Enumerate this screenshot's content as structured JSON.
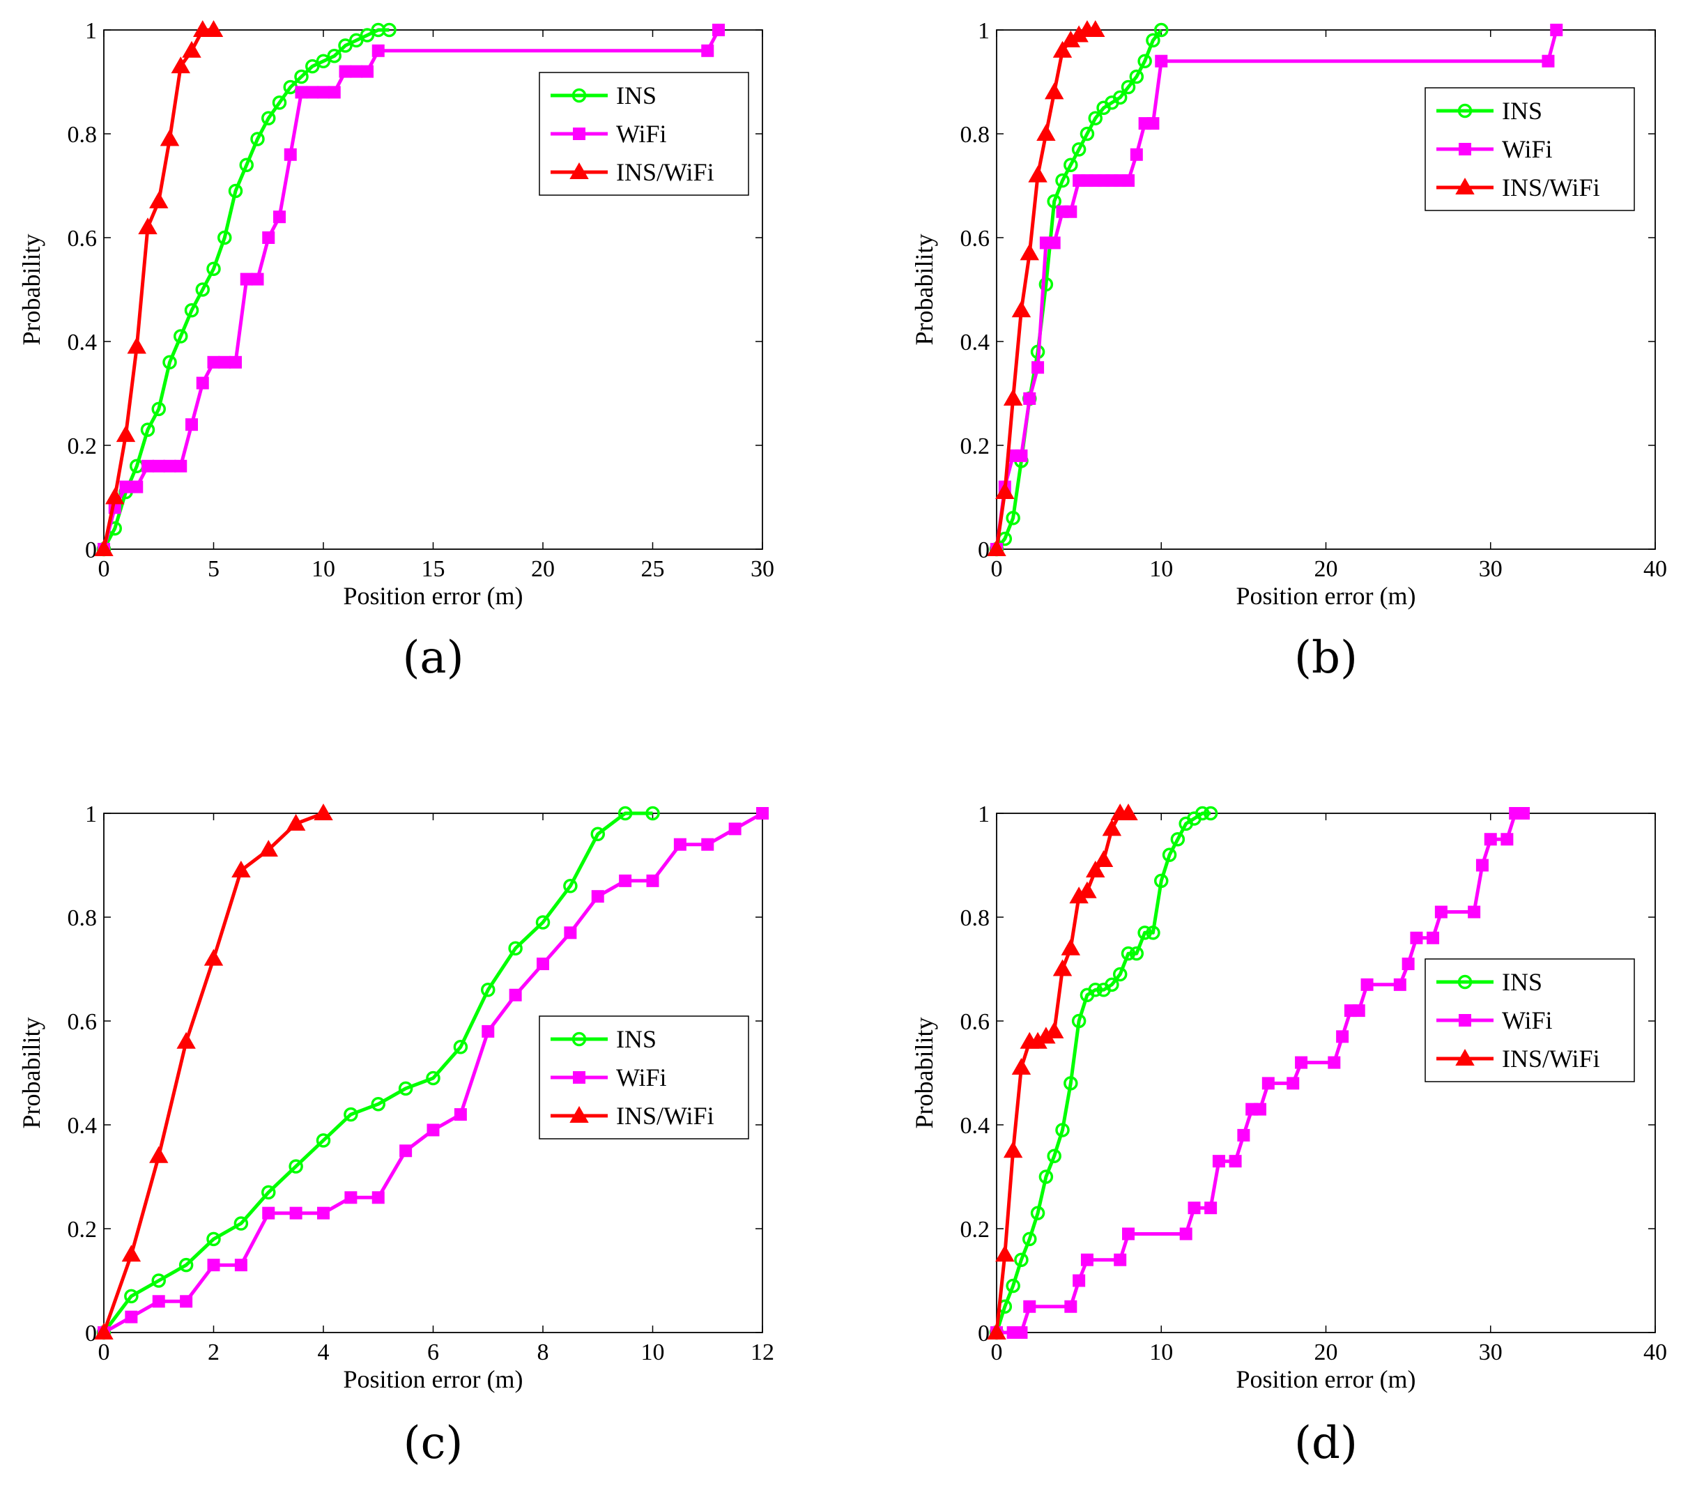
{
  "figure": {
    "panel_labels": [
      "(a)",
      "(b)",
      "(c)",
      "(d)"
    ]
  },
  "colors": {
    "INS": "#00ff00",
    "WiFi": "#ff00ff",
    "INS/WiFi": "#ff0000"
  },
  "chart_data": [
    {
      "type": "line",
      "panel": "(a)",
      "xlabel": "Position error (m)",
      "ylabel": "Probability",
      "xlim": [
        0,
        30
      ],
      "ylim": [
        0,
        1
      ],
      "xticks": [
        0,
        5,
        10,
        15,
        20,
        25,
        30
      ],
      "xtick_labels": [
        "0",
        "5",
        "10",
        "15",
        "20",
        "25",
        "30"
      ],
      "yticks": [
        0,
        0.2,
        0.4,
        0.6,
        0.8,
        1
      ],
      "ytick_labels": [
        "0",
        "0.2",
        "0.4",
        "0.6",
        "0.8",
        "1"
      ],
      "legend": {
        "position": "top-right",
        "entries": [
          "INS",
          "WiFi",
          "INS/WiFi"
        ]
      },
      "series": [
        {
          "name": "INS",
          "marker": "circle",
          "x": [
            0,
            0.5,
            1,
            1.5,
            2,
            2.5,
            3,
            3.5,
            4,
            4.5,
            5,
            5.5,
            6,
            6.5,
            7,
            7.5,
            8,
            8.5,
            9,
            9.5,
            10,
            10.5,
            11,
            11.5,
            12,
            12.5,
            13
          ],
          "y": [
            0,
            0.04,
            0.11,
            0.16,
            0.23,
            0.27,
            0.36,
            0.41,
            0.46,
            0.5,
            0.54,
            0.6,
            0.69,
            0.74,
            0.79,
            0.83,
            0.86,
            0.89,
            0.91,
            0.93,
            0.94,
            0.95,
            0.97,
            0.98,
            0.99,
            1,
            1
          ]
        },
        {
          "name": "WiFi",
          "marker": "square",
          "x": [
            0,
            0.5,
            1,
            1.5,
            2,
            2.5,
            3,
            3.5,
            4,
            4.5,
            5,
            5.5,
            6,
            6.5,
            7,
            7.5,
            8,
            8.5,
            9,
            9.5,
            10,
            10.5,
            11,
            11.5,
            12,
            12.5,
            27.5,
            28
          ],
          "y": [
            0,
            0.08,
            0.12,
            0.12,
            0.16,
            0.16,
            0.16,
            0.16,
            0.24,
            0.32,
            0.36,
            0.36,
            0.36,
            0.52,
            0.52,
            0.6,
            0.64,
            0.76,
            0.88,
            0.88,
            0.88,
            0.88,
            0.92,
            0.92,
            0.92,
            0.96,
            0.96,
            1
          ]
        },
        {
          "name": "INS/WiFi",
          "marker": "triangle",
          "x": [
            0,
            0.5,
            1,
            1.5,
            2,
            2.5,
            3,
            3.5,
            4,
            4.5,
            5
          ],
          "y": [
            0,
            0.1,
            0.22,
            0.39,
            0.62,
            0.67,
            0.79,
            0.93,
            0.96,
            1,
            1
          ]
        }
      ]
    },
    {
      "type": "line",
      "panel": "(b)",
      "xlabel": "Position error (m)",
      "ylabel": "Probability",
      "xlim": [
        0,
        40
      ],
      "ylim": [
        0,
        1
      ],
      "xticks": [
        0,
        10,
        20,
        30,
        40
      ],
      "xtick_labels": [
        "0",
        "10",
        "20",
        "30",
        "40"
      ],
      "yticks": [
        0,
        0.2,
        0.4,
        0.6,
        0.8,
        1
      ],
      "ytick_labels": [
        "0",
        "0.2",
        "0.4",
        "0.6",
        "0.8",
        "1"
      ],
      "legend": {
        "position": "top-right",
        "entries": [
          "INS",
          "WiFi",
          "INS/WiFi"
        ]
      },
      "series": [
        {
          "name": "INS",
          "marker": "circle",
          "x": [
            0,
            0.5,
            1,
            1.5,
            2,
            2.5,
            3,
            3.5,
            4,
            4.5,
            5,
            5.5,
            6,
            6.5,
            7,
            7.5,
            8,
            8.5,
            9,
            9.5,
            10
          ],
          "y": [
            0,
            0.02,
            0.06,
            0.17,
            0.29,
            0.38,
            0.51,
            0.67,
            0.71,
            0.74,
            0.77,
            0.8,
            0.83,
            0.85,
            0.86,
            0.87,
            0.89,
            0.91,
            0.94,
            0.98,
            1
          ]
        },
        {
          "name": "WiFi",
          "marker": "square",
          "x": [
            0,
            0.5,
            1,
            1.5,
            2,
            2.5,
            3,
            3.5,
            4,
            4.5,
            5,
            5.5,
            6,
            6.5,
            7,
            7.5,
            8,
            8.5,
            9,
            9.5,
            10,
            33.5,
            34
          ],
          "y": [
            0,
            0.12,
            0.18,
            0.18,
            0.29,
            0.35,
            0.59,
            0.59,
            0.65,
            0.65,
            0.71,
            0.71,
            0.71,
            0.71,
            0.71,
            0.71,
            0.71,
            0.76,
            0.82,
            0.82,
            0.94,
            0.94,
            1
          ]
        },
        {
          "name": "INS/WiFi",
          "marker": "triangle",
          "x": [
            0,
            0.5,
            1,
            1.5,
            2,
            2.5,
            3,
            3.5,
            4,
            4.5,
            5,
            5.5,
            6
          ],
          "y": [
            0,
            0.11,
            0.29,
            0.46,
            0.57,
            0.72,
            0.8,
            0.88,
            0.96,
            0.98,
            0.99,
            1,
            1
          ]
        }
      ]
    },
    {
      "type": "line",
      "panel": "(c)",
      "xlabel": "Position error (m)",
      "ylabel": "Probability",
      "xlim": [
        0,
        12
      ],
      "ylim": [
        0,
        1
      ],
      "xticks": [
        0,
        2,
        4,
        6,
        8,
        10,
        12
      ],
      "xtick_labels": [
        "0",
        "2",
        "4",
        "6",
        "8",
        "10",
        "12"
      ],
      "yticks": [
        0,
        0.2,
        0.4,
        0.6,
        0.8,
        1
      ],
      "ytick_labels": [
        "0",
        "0.2",
        "0.4",
        "0.6",
        "0.8",
        "1"
      ],
      "legend": {
        "position": "middle-right",
        "entries": [
          "INS",
          "WiFi",
          "INS/WiFi"
        ]
      },
      "series": [
        {
          "name": "INS",
          "marker": "circle",
          "x": [
            0,
            0.5,
            1,
            1.5,
            2,
            2.5,
            3,
            3.5,
            4,
            4.5,
            5,
            5.5,
            6,
            6.5,
            7,
            7.5,
            8,
            8.5,
            9,
            9.5,
            10
          ],
          "y": [
            0,
            0.07,
            0.1,
            0.13,
            0.18,
            0.21,
            0.27,
            0.32,
            0.37,
            0.42,
            0.44,
            0.47,
            0.49,
            0.55,
            0.66,
            0.74,
            0.79,
            0.86,
            0.96,
            1,
            1
          ]
        },
        {
          "name": "WiFi",
          "marker": "square",
          "x": [
            0,
            0.5,
            1,
            1.5,
            2,
            2.5,
            3,
            3.5,
            4,
            4.5,
            5,
            5.5,
            6,
            6.5,
            7,
            7.5,
            8,
            8.5,
            9,
            9.5,
            10,
            10.5,
            11,
            11.5,
            12
          ],
          "y": [
            0,
            0.03,
            0.06,
            0.06,
            0.13,
            0.13,
            0.23,
            0.23,
            0.23,
            0.26,
            0.26,
            0.35,
            0.39,
            0.42,
            0.58,
            0.65,
            0.71,
            0.77,
            0.84,
            0.87,
            0.87,
            0.94,
            0.94,
            0.97,
            1
          ]
        },
        {
          "name": "INS/WiFi",
          "marker": "triangle",
          "x": [
            0,
            0.5,
            1,
            1.5,
            2,
            2.5,
            3,
            3.5,
            4
          ],
          "y": [
            0,
            0.15,
            0.34,
            0.56,
            0.72,
            0.89,
            0.93,
            0.98,
            1
          ]
        }
      ]
    },
    {
      "type": "line",
      "panel": "(d)",
      "xlabel": "Position error (m)",
      "ylabel": "Probability",
      "xlim": [
        0,
        40
      ],
      "ylim": [
        0,
        1
      ],
      "xticks": [
        0,
        10,
        20,
        30,
        40
      ],
      "xtick_labels": [
        "0",
        "10",
        "20",
        "30",
        "40"
      ],
      "yticks": [
        0,
        0.2,
        0.4,
        0.6,
        0.8,
        1
      ],
      "ytick_labels": [
        "0",
        "0.2",
        "0.4",
        "0.6",
        "0.8",
        "1"
      ],
      "legend": {
        "position": "middle-right",
        "entries": [
          "INS",
          "WiFi",
          "INS/WiFi"
        ]
      },
      "series": [
        {
          "name": "INS",
          "marker": "circle",
          "x": [
            0,
            0.5,
            1,
            1.5,
            2,
            2.5,
            3,
            3.5,
            4,
            4.5,
            5,
            5.5,
            6,
            6.5,
            7,
            7.5,
            8,
            8.5,
            9,
            9.5,
            10,
            10.5,
            11,
            11.5,
            12,
            12.5,
            13
          ],
          "y": [
            0,
            0.05,
            0.09,
            0.14,
            0.18,
            0.23,
            0.3,
            0.34,
            0.39,
            0.48,
            0.6,
            0.65,
            0.66,
            0.66,
            0.67,
            0.69,
            0.73,
            0.73,
            0.77,
            0.77,
            0.87,
            0.92,
            0.95,
            0.98,
            0.99,
            1,
            1
          ]
        },
        {
          "name": "WiFi",
          "marker": "square",
          "x": [
            0,
            1,
            1.5,
            2,
            4.5,
            5,
            5.5,
            7.5,
            8,
            11.5,
            12,
            13,
            13.5,
            14.5,
            15,
            15.5,
            16,
            16.5,
            18,
            18.5,
            20.5,
            21,
            21.5,
            22,
            22.5,
            24.5,
            25,
            25.5,
            26.5,
            27,
            29,
            29.5,
            30,
            31,
            31.5,
            32
          ],
          "y": [
            0,
            0,
            0,
            0.05,
            0.05,
            0.1,
            0.14,
            0.14,
            0.19,
            0.19,
            0.24,
            0.24,
            0.33,
            0.33,
            0.38,
            0.43,
            0.43,
            0.48,
            0.48,
            0.52,
            0.52,
            0.57,
            0.62,
            0.62,
            0.67,
            0.67,
            0.71,
            0.76,
            0.76,
            0.81,
            0.81,
            0.9,
            0.95,
            0.95,
            1,
            1
          ]
        },
        {
          "name": "INS/WiFi",
          "marker": "triangle",
          "x": [
            0,
            0.5,
            1,
            1.5,
            2,
            2.5,
            3,
            3.5,
            4,
            4.5,
            5,
            5.5,
            6,
            6.5,
            7,
            7.5,
            8
          ],
          "y": [
            0,
            0.15,
            0.35,
            0.51,
            0.56,
            0.56,
            0.57,
            0.58,
            0.7,
            0.74,
            0.84,
            0.85,
            0.89,
            0.91,
            0.97,
            1,
            1
          ]
        }
      ]
    }
  ]
}
